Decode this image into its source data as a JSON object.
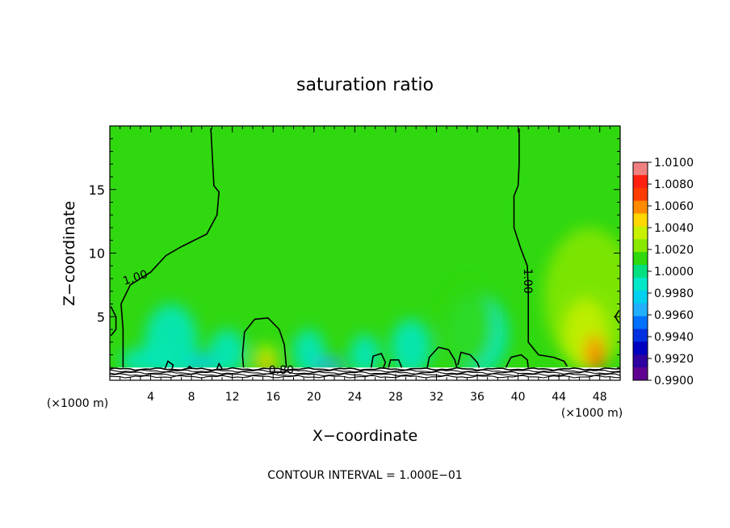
{
  "chart_data": {
    "type": "heatmap",
    "title": "saturation ratio",
    "xlabel": "X−coordinate",
    "ylabel": "Z−coordinate",
    "x_unit_left": "(×1000 m)",
    "x_unit_right": "(×1000 m)",
    "footer": "CONTOUR INTERVAL = 1.000E−01",
    "xlim": [
      0,
      50
    ],
    "ylim": [
      0,
      20
    ],
    "x_ticks": [
      4,
      8,
      12,
      16,
      20,
      24,
      28,
      32,
      36,
      40,
      44,
      48
    ],
    "y_ticks": [
      5,
      10,
      15
    ],
    "colorbar": {
      "labels": [
        "1.0100",
        "1.0080",
        "1.0060",
        "1.0040",
        "1.0020",
        "1.0000",
        "0.9980",
        "0.9960",
        "0.9940",
        "0.9920",
        "0.9900"
      ],
      "colors": [
        "#f08080",
        "#ff2010",
        "#ff3c00",
        "#ff8c00",
        "#ffd700",
        "#c8f000",
        "#88e800",
        "#30d810",
        "#00e080",
        "#00e8c8",
        "#00d0f0",
        "#20b0ff",
        "#0070ff",
        "#0030e0",
        "#0000c0",
        "#3000a0",
        "#600090"
      ],
      "range": [
        0.99,
        1.01
      ]
    },
    "contour_labels": [
      {
        "text": "1.00",
        "x": 2.6,
        "y": 7.8
      },
      {
        "text": "1.00",
        "x": 40.6,
        "y": 7.8
      },
      {
        "text": "0.80",
        "x": 16.8,
        "y": 0.5
      }
    ],
    "contours": [
      [
        [
          1.3,
          1.0
        ],
        [
          1.3,
          4.0
        ],
        [
          1.1,
          6.0
        ],
        [
          2.0,
          7.5
        ],
        [
          4.0,
          8.5
        ],
        [
          5.5,
          9.8
        ],
        [
          7.0,
          10.5
        ],
        [
          9.5,
          11.5
        ],
        [
          10.5,
          13.0
        ],
        [
          10.7,
          14.8
        ],
        [
          10.2,
          15.3
        ],
        [
          9.9,
          19.8
        ]
      ],
      [
        [
          40.1,
          19.8
        ],
        [
          40.1,
          17.0
        ],
        [
          40.0,
          15.3
        ],
        [
          39.6,
          14.5
        ],
        [
          39.6,
          12.0
        ],
        [
          40.2,
          10.5
        ],
        [
          40.9,
          9.0
        ],
        [
          41.0,
          7.0
        ],
        [
          41.0,
          3.0
        ],
        [
          42.0,
          2.0
        ],
        [
          43.5,
          1.8
        ],
        [
          44.5,
          1.5
        ],
        [
          44.8,
          1.1
        ]
      ],
      [
        [
          0.1,
          5.8
        ],
        [
          0.6,
          5.0
        ],
        [
          0.6,
          4.0
        ],
        [
          0.1,
          3.5
        ]
      ],
      [
        [
          49.9,
          5.5
        ],
        [
          49.5,
          5.0
        ],
        [
          49.9,
          4.5
        ]
      ],
      [
        [
          13.1,
          1.0
        ],
        [
          13.0,
          2.0
        ],
        [
          13.2,
          3.8
        ],
        [
          14.2,
          4.8
        ],
        [
          15.5,
          4.9
        ],
        [
          16.6,
          4.0
        ],
        [
          17.1,
          2.8
        ],
        [
          17.3,
          1.0
        ]
      ],
      [
        [
          31.1,
          1.0
        ],
        [
          31.3,
          1.8
        ],
        [
          32.2,
          2.6
        ],
        [
          33.2,
          2.4
        ],
        [
          33.8,
          1.6
        ],
        [
          34.0,
          1.0
        ]
      ],
      [
        [
          34.1,
          1.2
        ],
        [
          34.4,
          2.2
        ],
        [
          35.3,
          2.0
        ],
        [
          36.0,
          1.4
        ],
        [
          36.2,
          1.0
        ]
      ],
      [
        [
          38.8,
          1.0
        ],
        [
          39.3,
          1.8
        ],
        [
          40.3,
          2.0
        ],
        [
          40.9,
          1.6
        ],
        [
          41.0,
          1.0
        ]
      ],
      [
        [
          25.6,
          1.0
        ],
        [
          25.8,
          1.9
        ],
        [
          26.6,
          2.1
        ],
        [
          27.0,
          1.4
        ],
        [
          26.8,
          1.0
        ]
      ],
      [
        [
          27.3,
          1.0
        ],
        [
          27.5,
          1.6
        ],
        [
          28.3,
          1.6
        ],
        [
          28.6,
          1.0
        ]
      ],
      [
        [
          5.4,
          0.9
        ],
        [
          5.7,
          1.5
        ],
        [
          6.2,
          1.2
        ],
        [
          6.1,
          0.9
        ]
      ],
      [
        [
          7.6,
          0.9
        ],
        [
          7.8,
          1.1
        ],
        [
          8.1,
          0.9
        ]
      ],
      [
        [
          10.5,
          0.9
        ],
        [
          10.7,
          1.3
        ],
        [
          11.0,
          0.9
        ]
      ]
    ],
    "anomalies": [
      {
        "x": 47.0,
        "y": 6.5,
        "rx": 4.5,
        "ry": 5.5,
        "value": 1.0018
      },
      {
        "x": 46.6,
        "y": 3.6,
        "rx": 2.2,
        "ry": 2.8,
        "value": 1.0035
      },
      {
        "x": 47.5,
        "y": 2.2,
        "rx": 1.0,
        "ry": 1.4,
        "value": 1.006
      },
      {
        "x": 47.8,
        "y": 1.4,
        "rx": 0.5,
        "ry": 0.6,
        "value": 1.0085
      },
      {
        "x": 15.3,
        "y": 1.6,
        "rx": 1.2,
        "ry": 1.2,
        "value": 1.004
      },
      {
        "x": 15.3,
        "y": 1.2,
        "rx": 0.5,
        "ry": 0.4,
        "value": 1.007
      },
      {
        "x": 6.0,
        "y": 3.0,
        "rx": 2.6,
        "ry": 3.0,
        "value": 0.9985
      },
      {
        "x": 11.5,
        "y": 2.2,
        "rx": 1.8,
        "ry": 1.8,
        "value": 0.9988
      },
      {
        "x": 19.5,
        "y": 2.2,
        "rx": 1.6,
        "ry": 1.8,
        "value": 0.9986
      },
      {
        "x": 25.0,
        "y": 2.0,
        "rx": 1.5,
        "ry": 1.6,
        "value": 0.9988
      },
      {
        "x": 29.5,
        "y": 2.6,
        "rx": 2.0,
        "ry": 2.2,
        "value": 0.9986
      },
      {
        "x": 36.0,
        "y": 3.6,
        "rx": 3.0,
        "ry": 3.2,
        "value": 0.9984
      },
      {
        "x": 35.0,
        "y": 4.4,
        "rx": 2.6,
        "ry": 3.4,
        "value": 1.0012
      },
      {
        "x": 3.0,
        "y": 1.5,
        "rx": 2.0,
        "ry": 1.0,
        "value": 0.9983
      },
      {
        "x": 9.0,
        "y": 1.3,
        "rx": 1.5,
        "ry": 0.8,
        "value": 0.9975
      },
      {
        "x": 21.5,
        "y": 1.2,
        "rx": 1.6,
        "ry": 0.6,
        "value": 0.9965
      }
    ],
    "background_value": 1.0,
    "ground_z": 1.0
  }
}
